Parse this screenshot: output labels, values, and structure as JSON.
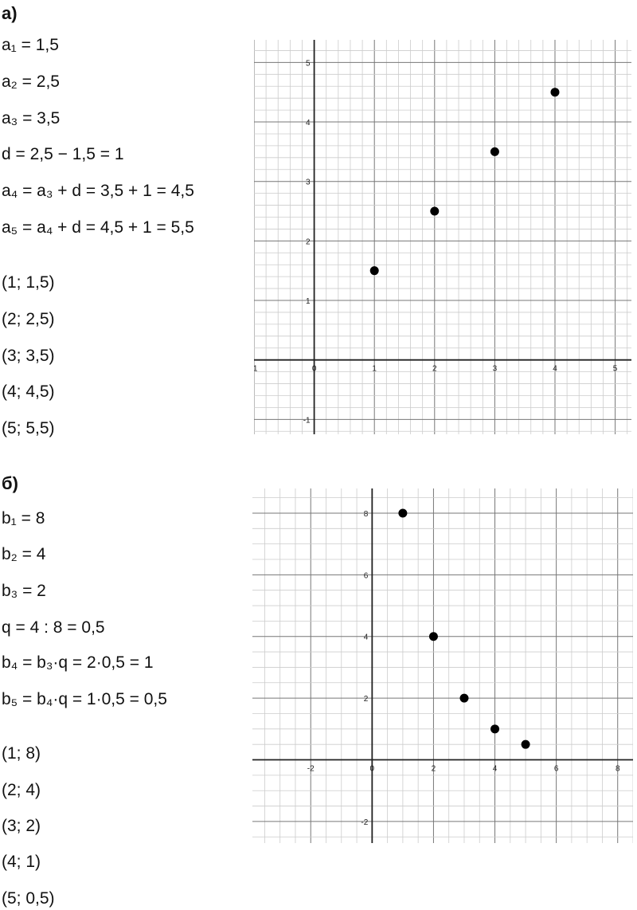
{
  "section_a": {
    "heading": "а)",
    "lines": [
      "a₁ = 1,5",
      "a₂ = 2,5",
      "a₃ = 3,5",
      "d = 2,5 − 1,5 = 1",
      "a₄ = a₃ + d = 3,5 + 1 = 4,5",
      "a₅ = a₄ + d = 4,5 + 1 = 5,5"
    ],
    "points": [
      "(1; 1,5)",
      "(2; 2,5)",
      "(3; 3,5)",
      "(4; 4,5)",
      "(5; 5,5)"
    ]
  },
  "section_b": {
    "heading": "б)",
    "lines": [
      "b₁ = 8",
      "b₂ = 4",
      "b₃ = 2",
      "q = 4 : 8 = 0,5",
      "b₄ = b₃·q = 2·0,5 = 1",
      "b₅ = b₄·q = 1·0,5 = 0,5"
    ],
    "points": [
      "(1; 8)",
      "(2; 4)",
      "(3; 2)",
      "(4; 1)",
      "(5; 0,5)"
    ]
  },
  "chart_data": [
    {
      "type": "scatter",
      "xlim": [
        -1,
        5.27
      ],
      "ylim": [
        -1.25,
        5.38
      ],
      "x_ticks": [
        -1,
        0,
        1,
        2,
        3,
        4,
        5
      ],
      "y_ticks": [
        -1,
        1,
        2,
        3,
        4,
        5
      ],
      "minor_step": 0.2,
      "grid": true,
      "x": [
        1,
        2,
        3,
        4
      ],
      "y": [
        1.5,
        2.5,
        3.5,
        4.5
      ],
      "point_color": "#000000"
    },
    {
      "type": "scatter",
      "xlim": [
        -3.9,
        8.5
      ],
      "ylim": [
        -2.7,
        8.8
      ],
      "x_ticks": [
        -2,
        0,
        2,
        4,
        6,
        8
      ],
      "y_ticks": [
        -2,
        2,
        4,
        6,
        8
      ],
      "minor_step": 0.5,
      "grid": true,
      "x": [
        1,
        2,
        3,
        4,
        5
      ],
      "y": [
        8,
        4,
        2,
        1,
        0.5
      ],
      "point_color": "#000000"
    }
  ]
}
